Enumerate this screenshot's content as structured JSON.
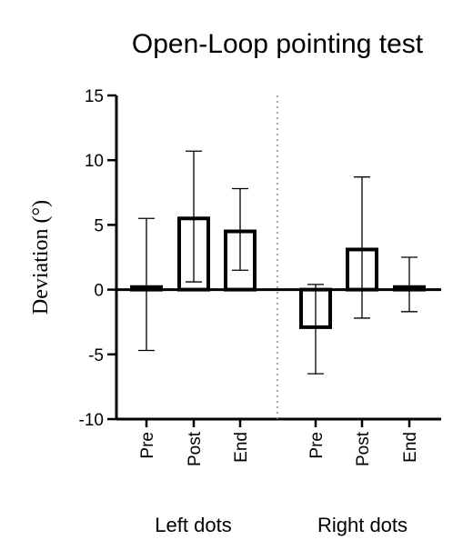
{
  "chart_data": {
    "type": "bar",
    "title": "Open-Loop pointing test",
    "ylabel": "Deviation (°)",
    "xlabel": "",
    "ylim": [
      -10,
      15
    ],
    "yticks": [
      -10,
      -5,
      0,
      5,
      10,
      15
    ],
    "grid": false,
    "groups": [
      {
        "label": "Left dots",
        "bars": [
          {
            "label": "Pre",
            "value": 0.2,
            "err_low": -4.7,
            "err_high": 5.5
          },
          {
            "label": "Post",
            "value": 5.5,
            "err_low": 0.6,
            "err_high": 10.7
          },
          {
            "label": "End",
            "value": 4.5,
            "err_low": 1.5,
            "err_high": 7.8
          }
        ]
      },
      {
        "label": "Right dots",
        "bars": [
          {
            "label": "Pre",
            "value": -2.9,
            "err_low": -6.5,
            "err_high": 0.4
          },
          {
            "label": "Post",
            "value": 3.1,
            "err_low": -2.2,
            "err_high": 8.7
          },
          {
            "label": "End",
            "value": 0.2,
            "err_low": -1.7,
            "err_high": 2.5
          }
        ]
      }
    ],
    "separator": "dotted vertical line between groups"
  }
}
